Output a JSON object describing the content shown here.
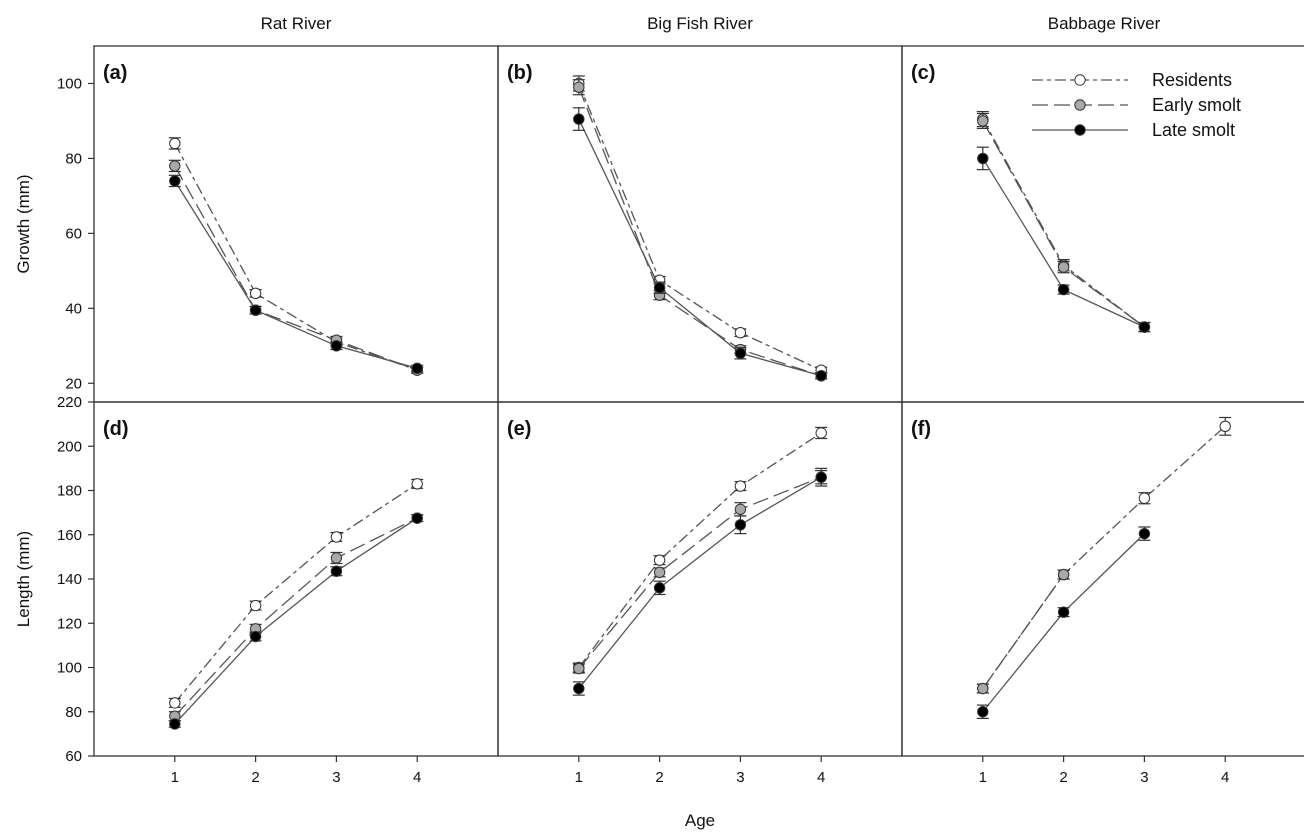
{
  "columns": [
    "Rat River",
    "Big Fish River",
    "Babbage River"
  ],
  "xlabel": "Age",
  "legend": {
    "items": [
      {
        "label": "Residents",
        "marker": "open-circle",
        "dash": "long-short"
      },
      {
        "label": "Early smolt",
        "marker": "grey-circle",
        "dash": "long"
      },
      {
        "label": "Late smolt",
        "marker": "filled-circle",
        "dash": "solid"
      }
    ],
    "placement": "top-right of panel (c)"
  },
  "colors": {
    "residents_fill": "#ffffff",
    "early_fill": "#a8a8a8",
    "late_fill": "#000000",
    "line": "#555555",
    "frame": "#333333"
  },
  "chart_data": [
    {
      "panel": "(a)",
      "type": "line",
      "row": "growth",
      "river": "Rat River",
      "ylabel": "Growth (mm)",
      "ylim": [
        15,
        110
      ],
      "yticks": [
        20,
        40,
        60,
        80,
        100
      ],
      "xlim": [
        0,
        5
      ],
      "xticks": [
        1,
        2,
        3,
        4
      ],
      "series": [
        {
          "name": "Residents",
          "x": [
            1,
            2,
            3,
            4
          ],
          "y": [
            84,
            44,
            31,
            23.5
          ],
          "err": [
            1.5,
            1,
            1,
            0.8
          ]
        },
        {
          "name": "Early smolt",
          "x": [
            1,
            2,
            3,
            4
          ],
          "y": [
            78,
            39.5,
            31.5,
            23.5
          ],
          "err": [
            1.5,
            1,
            1,
            0.8
          ]
        },
        {
          "name": "Late smolt",
          "x": [
            1,
            2,
            3,
            4
          ],
          "y": [
            74,
            39.5,
            30,
            24
          ],
          "err": [
            1.5,
            1,
            1,
            0.8
          ]
        }
      ]
    },
    {
      "panel": "(b)",
      "type": "line",
      "row": "growth",
      "river": "Big Fish River",
      "ylim": [
        15,
        110
      ],
      "xlim": [
        0,
        5
      ],
      "xticks": [
        1,
        2,
        3,
        4
      ],
      "series": [
        {
          "name": "Residents",
          "x": [
            1,
            2,
            3,
            4
          ],
          "y": [
            100,
            47.5,
            33.5,
            23.5
          ],
          "err": [
            2,
            1,
            1,
            0.8
          ]
        },
        {
          "name": "Early smolt",
          "x": [
            1,
            2,
            3,
            4
          ],
          "y": [
            99,
            43.5,
            29,
            22
          ],
          "err": [
            2,
            1.2,
            1,
            0.8
          ]
        },
        {
          "name": "Late smolt",
          "x": [
            1,
            2,
            3,
            4
          ],
          "y": [
            90.5,
            45.5,
            28,
            22
          ],
          "err": [
            3,
            1.5,
            1.5,
            0.8
          ]
        }
      ]
    },
    {
      "panel": "(c)",
      "type": "line",
      "row": "growth",
      "river": "Babbage River",
      "ylim": [
        15,
        110
      ],
      "xlim": [
        0,
        5
      ],
      "xticks": [
        1,
        2,
        3,
        4
      ],
      "series": [
        {
          "name": "Residents",
          "x": [
            1,
            2,
            3
          ],
          "y": [
            90.5,
            51.5,
            35
          ],
          "err": [
            2,
            1.5,
            1.2
          ]
        },
        {
          "name": "Early smolt",
          "x": [
            1,
            2,
            3
          ],
          "y": [
            90,
            51,
            35
          ],
          "err": [
            2,
            1.5,
            1.2
          ]
        },
        {
          "name": "Late smolt",
          "x": [
            1,
            2,
            3
          ],
          "y": [
            80,
            45,
            35
          ],
          "err": [
            3,
            1.2,
            1.2
          ]
        }
      ]
    },
    {
      "panel": "(d)",
      "type": "line",
      "row": "length",
      "river": "Rat River",
      "ylabel": "Length (mm)",
      "ylim": [
        60,
        220
      ],
      "yticks": [
        60,
        80,
        100,
        120,
        140,
        160,
        180,
        200,
        220
      ],
      "xlim": [
        0,
        5
      ],
      "xticks": [
        1,
        2,
        3,
        4
      ],
      "series": [
        {
          "name": "Residents",
          "x": [
            1,
            2,
            3,
            4
          ],
          "y": [
            84,
            128,
            159,
            183
          ],
          "err": [
            2,
            2,
            2,
            2
          ]
        },
        {
          "name": "Early smolt",
          "x": [
            1,
            2,
            3,
            4
          ],
          "y": [
            78,
            117.5,
            149.5,
            167.5
          ],
          "err": [
            2,
            2,
            2.5,
            1.5
          ]
        },
        {
          "name": "Late smolt",
          "x": [
            1,
            2,
            3,
            4
          ],
          "y": [
            74.5,
            114,
            143.5,
            167.5
          ],
          "err": [
            1.5,
            2,
            2,
            1.5
          ]
        }
      ]
    },
    {
      "panel": "(e)",
      "type": "line",
      "row": "length",
      "river": "Big Fish River",
      "ylim": [
        60,
        220
      ],
      "xlim": [
        0,
        5
      ],
      "xticks": [
        1,
        2,
        3,
        4
      ],
      "series": [
        {
          "name": "Residents",
          "x": [
            1,
            2,
            3,
            4
          ],
          "y": [
            100,
            148.5,
            182,
            206
          ],
          "err": [
            2,
            2,
            2,
            2.5
          ]
        },
        {
          "name": "Early smolt",
          "x": [
            1,
            2,
            3,
            4
          ],
          "y": [
            99.5,
            143,
            171.5,
            186
          ],
          "err": [
            2,
            2,
            3,
            3
          ]
        },
        {
          "name": "Late smolt",
          "x": [
            1,
            2,
            3,
            4
          ],
          "y": [
            90.5,
            136,
            164.5,
            186
          ],
          "err": [
            3,
            3,
            4,
            4
          ]
        }
      ]
    },
    {
      "panel": "(f)",
      "type": "line",
      "row": "length",
      "river": "Babbage River",
      "ylim": [
        60,
        220
      ],
      "xlim": [
        0,
        5
      ],
      "xticks": [
        1,
        2,
        3,
        4
      ],
      "series": [
        {
          "name": "Residents",
          "x": [
            1,
            2,
            3,
            4
          ],
          "y": [
            90.5,
            142,
            176.5,
            209
          ],
          "err": [
            2,
            2,
            2.5,
            4
          ]
        },
        {
          "name": "Early smolt",
          "x": [
            1,
            2
          ],
          "y": [
            90.5,
            142
          ],
          "err": [
            2,
            2
          ]
        },
        {
          "name": "Late smolt",
          "x": [
            1,
            2,
            3
          ],
          "y": [
            80,
            125,
            160.5
          ],
          "err": [
            3,
            2,
            3
          ]
        }
      ]
    }
  ]
}
